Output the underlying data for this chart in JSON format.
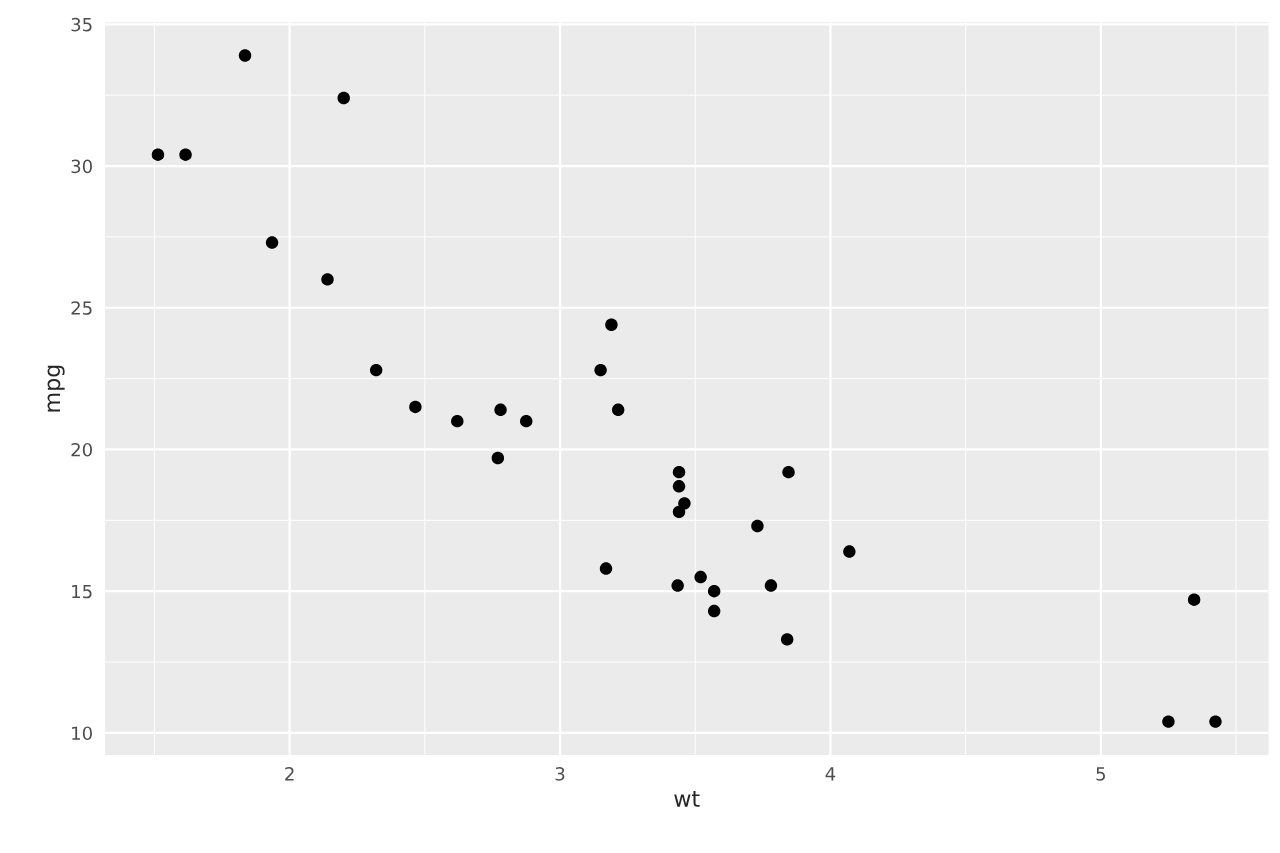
{
  "chart_data": {
    "type": "scatter",
    "xlabel": "wt",
    "ylabel": "mpg",
    "x": [
      2.62,
      2.875,
      2.32,
      3.215,
      3.44,
      3.46,
      3.57,
      3.19,
      3.15,
      3.44,
      3.44,
      4.07,
      3.73,
      3.78,
      5.25,
      5.424,
      5.345,
      2.2,
      1.615,
      1.835,
      2.465,
      3.52,
      3.435,
      3.84,
      3.845,
      1.935,
      2.14,
      1.513,
      3.17,
      2.77,
      3.57,
      2.78
    ],
    "series": [
      {
        "color": "#000000",
        "values": [
          21.0,
          21.0,
          22.8,
          21.4,
          18.7,
          18.1,
          14.3,
          24.4,
          22.8,
          19.2,
          17.8,
          16.4,
          17.3,
          15.2,
          10.4,
          10.4,
          14.7,
          32.4,
          30.4,
          33.9,
          21.5,
          15.5,
          15.2,
          13.3,
          19.2,
          27.3,
          26.0,
          30.4,
          15.8,
          19.7,
          15.0,
          21.4
        ]
      }
    ],
    "xlim": [
      1.317,
      5.62
    ],
    "ylim": [
      9.225,
      35.075
    ],
    "xticks": [
      2,
      3,
      4,
      5
    ],
    "yticks": [
      10,
      15,
      20,
      25,
      30,
      35
    ],
    "grid": true,
    "marker": "circle"
  }
}
